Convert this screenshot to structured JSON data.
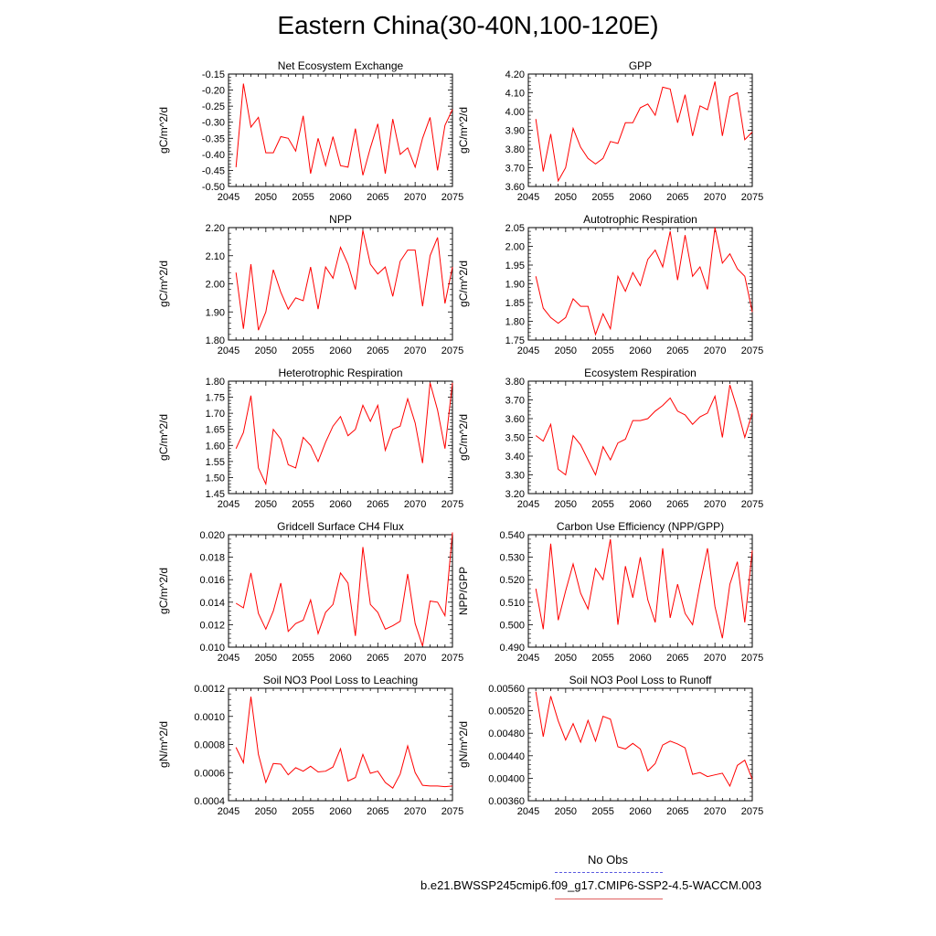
{
  "title": "Eastern China(30-40N,100-120E)",
  "legend": {
    "obs_label": "No Obs",
    "obs_color": "#5b5be0",
    "model_label": "b.e21.BWSSP245cmip6.f09_g17.CMIP6-SSP2-4.5-WACCM.003",
    "model_color": "#e06060"
  },
  "line_color": "#ff0000",
  "chart_data": [
    {
      "type": "line",
      "title": "Net Ecosystem Exchange",
      "ylabel": "gC/m^2/d",
      "xlim": [
        2045,
        2075
      ],
      "xticks": [
        "2045",
        "2050",
        "2055",
        "2060",
        "2065",
        "2070",
        "2075"
      ],
      "ylim": [
        -0.5,
        -0.15
      ],
      "yticks": [
        "-0.15",
        "-0.20",
        "-0.25",
        "-0.30",
        "-0.35",
        "-0.40",
        "-0.45",
        "-0.50"
      ],
      "x_start": 2046,
      "values": [
        -0.44,
        -0.18,
        -0.315,
        -0.285,
        -0.395,
        -0.395,
        -0.345,
        -0.35,
        -0.39,
        -0.28,
        -0.46,
        -0.35,
        -0.435,
        -0.345,
        -0.435,
        -0.44,
        -0.32,
        -0.465,
        -0.38,
        -0.305,
        -0.46,
        -0.29,
        -0.4,
        -0.38,
        -0.44,
        -0.35,
        -0.285,
        -0.45,
        -0.31,
        -0.26
      ]
    },
    {
      "type": "line",
      "title": "GPP",
      "ylabel": "gC/m^2/d",
      "xlim": [
        2045,
        2075
      ],
      "xticks": [
        "2045",
        "2050",
        "2055",
        "2060",
        "2065",
        "2070",
        "2075"
      ],
      "ylim": [
        3.6,
        4.2
      ],
      "yticks": [
        "4.20",
        "4.10",
        "4.00",
        "3.90",
        "3.80",
        "3.70",
        "3.60"
      ],
      "x_start": 2046,
      "values": [
        3.96,
        3.68,
        3.88,
        3.63,
        3.7,
        3.91,
        3.81,
        3.75,
        3.72,
        3.75,
        3.84,
        3.83,
        3.94,
        3.94,
        4.02,
        4.04,
        3.98,
        4.13,
        4.12,
        3.94,
        4.09,
        3.87,
        4.03,
        4.01,
        4.16,
        3.87,
        4.08,
        4.1,
        3.85,
        3.89
      ]
    },
    {
      "type": "line",
      "title": "NPP",
      "ylabel": "gC/m^2/d",
      "xlim": [
        2045,
        2075
      ],
      "xticks": [
        "2045",
        "2050",
        "2055",
        "2060",
        "2065",
        "2070",
        "2075"
      ],
      "ylim": [
        1.8,
        2.2
      ],
      "yticks": [
        "2.20",
        "2.10",
        "2.00",
        "1.90",
        "1.80"
      ],
      "x_start": 2046,
      "values": [
        2.04,
        1.84,
        2.07,
        1.835,
        1.9,
        2.05,
        1.97,
        1.91,
        1.95,
        1.94,
        2.06,
        1.91,
        2.06,
        2.02,
        2.13,
        2.07,
        1.98,
        2.19,
        2.07,
        2.035,
        2.06,
        1.955,
        2.08,
        2.12,
        2.12,
        1.92,
        2.1,
        2.165,
        1.93,
        2.06
      ]
    },
    {
      "type": "line",
      "title": "Autotrophic Respiration",
      "ylabel": "gC/m^2/d",
      "xlim": [
        2045,
        2075
      ],
      "xticks": [
        "2045",
        "2050",
        "2055",
        "2060",
        "2065",
        "2070",
        "2075"
      ],
      "ylim": [
        1.75,
        2.05
      ],
      "yticks": [
        "2.05",
        "2.00",
        "1.95",
        "1.90",
        "1.85",
        "1.80",
        "1.75"
      ],
      "x_start": 2046,
      "values": [
        1.92,
        1.835,
        1.81,
        1.795,
        1.81,
        1.86,
        1.84,
        1.84,
        1.765,
        1.82,
        1.78,
        1.92,
        1.88,
        1.93,
        1.895,
        1.965,
        1.99,
        1.945,
        2.04,
        1.91,
        2.03,
        1.92,
        1.945,
        1.885,
        2.05,
        1.955,
        1.98,
        1.94,
        1.92,
        1.825
      ]
    },
    {
      "type": "line",
      "title": "Heterotrophic Respiration",
      "ylabel": "gC/m^2/d",
      "xlim": [
        2045,
        2075
      ],
      "xticks": [
        "2045",
        "2050",
        "2055",
        "2060",
        "2065",
        "2070",
        "2075"
      ],
      "ylim": [
        1.45,
        1.8
      ],
      "yticks": [
        "1.80",
        "1.75",
        "1.70",
        "1.65",
        "1.60",
        "1.55",
        "1.50",
        "1.45"
      ],
      "x_start": 2046,
      "values": [
        1.59,
        1.64,
        1.755,
        1.53,
        1.48,
        1.65,
        1.62,
        1.54,
        1.53,
        1.625,
        1.6,
        1.55,
        1.61,
        1.66,
        1.69,
        1.63,
        1.65,
        1.725,
        1.675,
        1.725,
        1.585,
        1.65,
        1.66,
        1.745,
        1.67,
        1.545,
        1.795,
        1.71,
        1.59,
        1.795
      ]
    },
    {
      "type": "line",
      "title": "Ecosystem Respiration",
      "ylabel": "gC/m^2/d",
      "xlim": [
        2045,
        2075
      ],
      "xticks": [
        "2045",
        "2050",
        "2055",
        "2060",
        "2065",
        "2070",
        "2075"
      ],
      "ylim": [
        3.2,
        3.8
      ],
      "yticks": [
        "3.80",
        "3.70",
        "3.60",
        "3.50",
        "3.40",
        "3.30",
        "3.20"
      ],
      "x_start": 2046,
      "values": [
        3.51,
        3.48,
        3.57,
        3.33,
        3.3,
        3.51,
        3.46,
        3.38,
        3.3,
        3.45,
        3.38,
        3.47,
        3.49,
        3.59,
        3.59,
        3.6,
        3.64,
        3.67,
        3.71,
        3.64,
        3.62,
        3.57,
        3.61,
        3.63,
        3.72,
        3.5,
        3.78,
        3.65,
        3.5,
        3.63
      ]
    },
    {
      "type": "line",
      "title": "Gridcell Surface CH4 Flux",
      "ylabel": "gC/m^2/d",
      "xlim": [
        2045,
        2075
      ],
      "xticks": [
        "2045",
        "2050",
        "2055",
        "2060",
        "2065",
        "2070",
        "2075"
      ],
      "ylim": [
        0.01,
        0.02
      ],
      "yticks": [
        "0.020",
        "0.018",
        "0.016",
        "0.014",
        "0.012",
        "0.010"
      ],
      "x_start": 2046,
      "values": [
        0.0139,
        0.0135,
        0.0166,
        0.013,
        0.0116,
        0.0132,
        0.0157,
        0.0114,
        0.0121,
        0.0124,
        0.0142,
        0.0112,
        0.0131,
        0.0138,
        0.0166,
        0.0157,
        0.011,
        0.0189,
        0.0138,
        0.0131,
        0.0116,
        0.0119,
        0.0123,
        0.0165,
        0.0121,
        0.0101,
        0.0141,
        0.014,
        0.0128,
        0.0202
      ]
    },
    {
      "type": "line",
      "title": "Carbon Use Efficiency (NPP/GPP)",
      "ylabel": "NPP/GPP",
      "xlim": [
        2045,
        2075
      ],
      "xticks": [
        "2045",
        "2050",
        "2055",
        "2060",
        "2065",
        "2070",
        "2075"
      ],
      "ylim": [
        0.49,
        0.54
      ],
      "yticks": [
        "0.540",
        "0.530",
        "0.520",
        "0.510",
        "0.500",
        "0.490"
      ],
      "x_start": 2046,
      "values": [
        0.516,
        0.498,
        0.536,
        0.502,
        0.515,
        0.527,
        0.514,
        0.507,
        0.525,
        0.52,
        0.538,
        0.5,
        0.526,
        0.512,
        0.53,
        0.511,
        0.501,
        0.534,
        0.503,
        0.518,
        0.505,
        0.5,
        0.518,
        0.534,
        0.508,
        0.494,
        0.518,
        0.528,
        0.501,
        0.533
      ]
    },
    {
      "type": "line",
      "title": "Soil NO3 Pool Loss to Leaching",
      "ylabel": "gN/m^2/d",
      "xlim": [
        2045,
        2075
      ],
      "xticks": [
        "2045",
        "2050",
        "2055",
        "2060",
        "2065",
        "2070",
        "2075"
      ],
      "ylim": [
        0.0004,
        0.0012
      ],
      "yticks": [
        "0.0012",
        "0.0010",
        "0.0008",
        "0.0006",
        "0.0004"
      ],
      "x_start": 2046,
      "values": [
        0.00078,
        0.00067,
        0.00114,
        0.00073,
        0.00053,
        0.000665,
        0.00066,
        0.000585,
        0.000635,
        0.00061,
        0.000645,
        0.000605,
        0.00061,
        0.00064,
        0.00077,
        0.00054,
        0.000565,
        0.00073,
        0.000595,
        0.00061,
        0.00053,
        0.00049,
        0.00059,
        0.00079,
        0.0006,
        0.00051,
        0.000505,
        0.000505,
        0.0005,
        0.000505
      ]
    },
    {
      "type": "line",
      "title": "Soil NO3 Pool Loss to Runoff",
      "ylabel": "gN/m^2/d",
      "xlim": [
        2045,
        2075
      ],
      "xticks": [
        "2045",
        "2050",
        "2055",
        "2060",
        "2065",
        "2070",
        "2075"
      ],
      "ylim": [
        0.0036,
        0.0056
      ],
      "yticks": [
        "0.00560",
        "0.00520",
        "0.00480",
        "0.00440",
        "0.00400",
        "0.00360"
      ],
      "x_start": 2046,
      "values": [
        0.00554,
        0.00474,
        0.00546,
        0.00502,
        0.00468,
        0.00497,
        0.00464,
        0.00503,
        0.00466,
        0.0051,
        0.00505,
        0.00456,
        0.00452,
        0.00462,
        0.00452,
        0.00413,
        0.00426,
        0.00459,
        0.00466,
        0.00461,
        0.00454,
        0.00407,
        0.0041,
        0.00403,
        0.00406,
        0.00409,
        0.00386,
        0.00423,
        0.00432,
        0.00398
      ]
    }
  ]
}
